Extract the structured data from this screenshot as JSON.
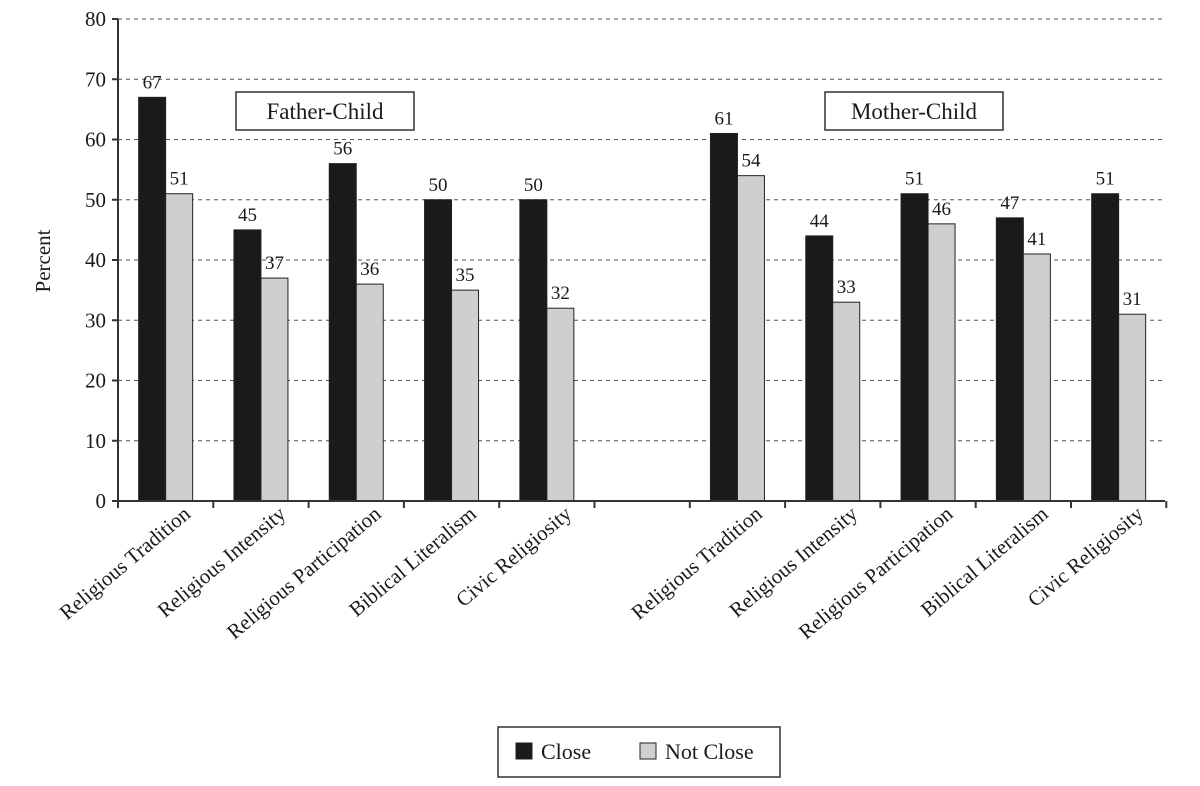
{
  "chart_data": {
    "type": "bar",
    "ylabel": "Percent",
    "ylim": [
      0,
      80
    ],
    "yticks": [
      0,
      10,
      20,
      30,
      40,
      50,
      60,
      70,
      80
    ],
    "grid": true,
    "legend_position": "bottom",
    "categories": [
      "Religious Tradition",
      "Religious Intensity",
      "Religious Participation",
      "Biblical Literalism",
      "Civic Religiosity",
      "Religious Tradition",
      "Religious Intensity",
      "Religious Participation",
      "Biblical Literalism",
      "Civic Religiosity"
    ],
    "groups": [
      {
        "label": "Father-Child",
        "category_indices": [
          0,
          1,
          2,
          3,
          4
        ]
      },
      {
        "label": "Mother-Child",
        "category_indices": [
          5,
          6,
          7,
          8,
          9
        ]
      }
    ],
    "series": [
      {
        "name": "Close",
        "color": "#1a1a1a",
        "values": [
          67,
          45,
          56,
          50,
          50,
          61,
          44,
          51,
          47,
          51
        ]
      },
      {
        "name": "Not Close",
        "color": "#cfcfcf",
        "values": [
          51,
          37,
          36,
          35,
          32,
          54,
          33,
          46,
          41,
          31
        ]
      }
    ]
  }
}
